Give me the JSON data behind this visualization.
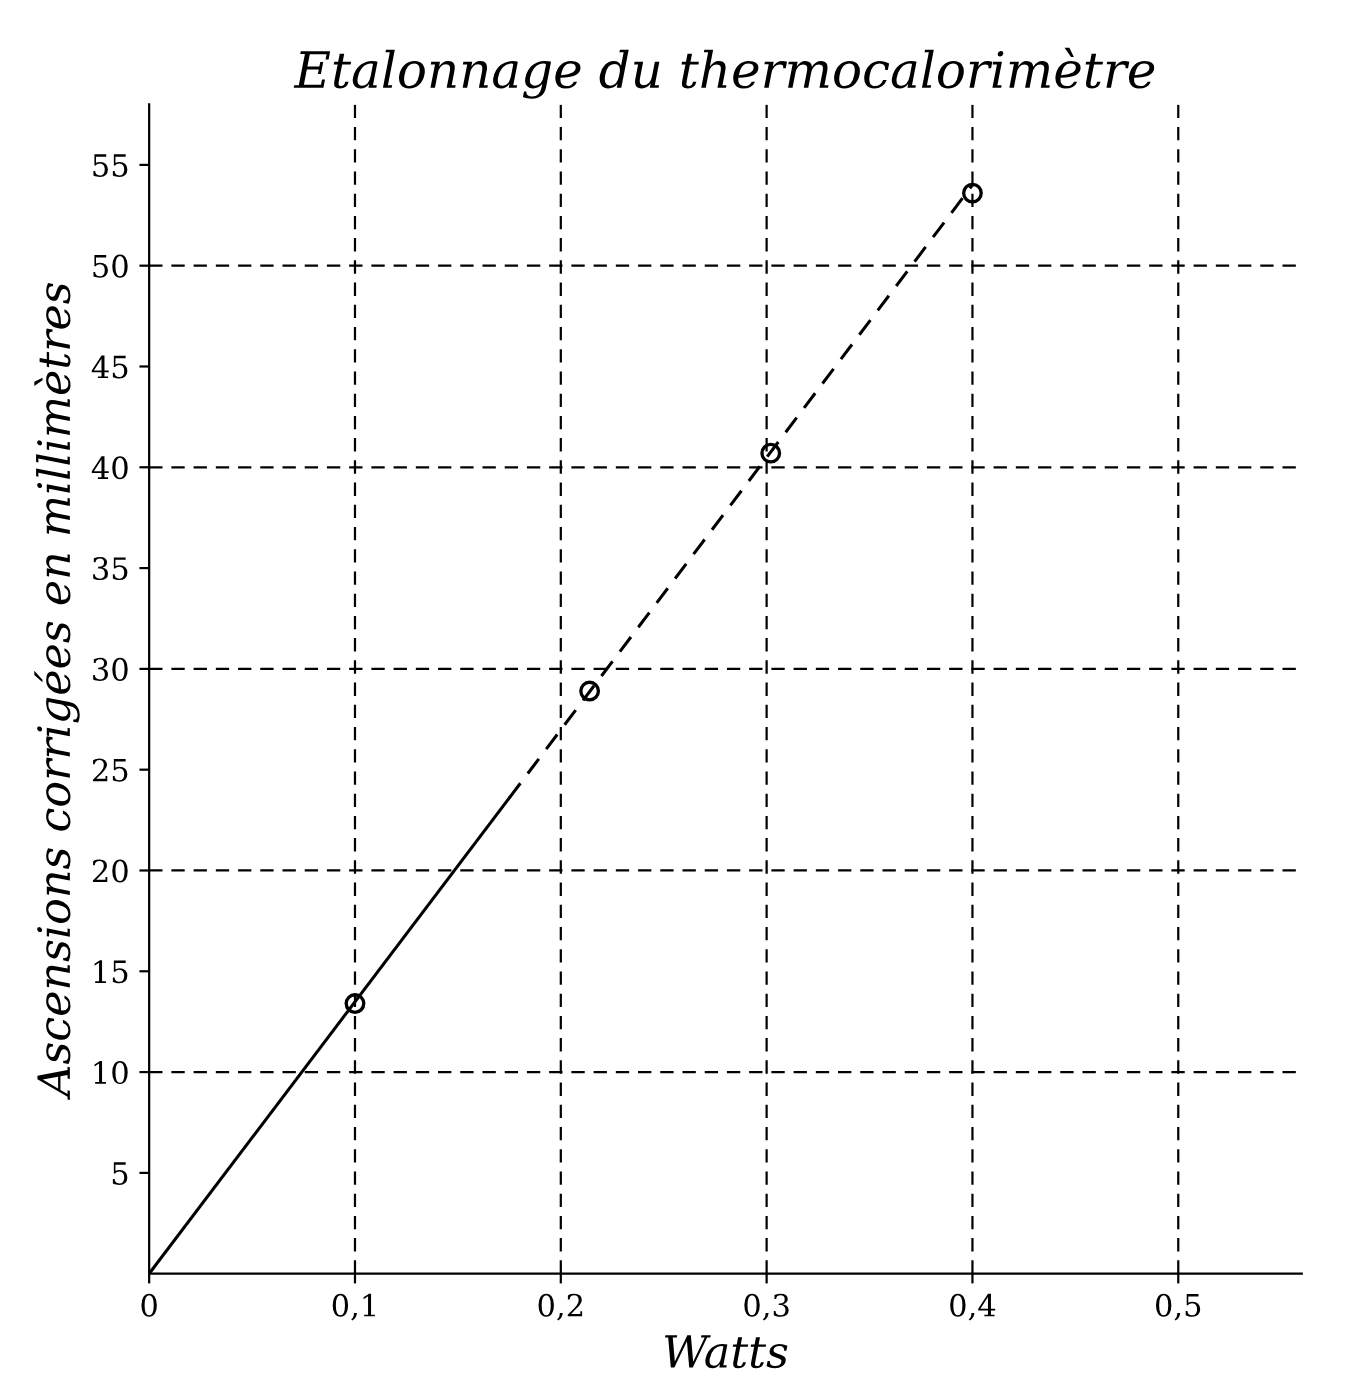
{
  "chart_data": {
    "type": "scatter",
    "title": "Etalonnage du thermocalorimètre",
    "xlabel": "Watts",
    "ylabel": "Ascensions corrigées en millimètres",
    "xlim": [
      0,
      0.56
    ],
    "ylim": [
      0,
      58
    ],
    "xticks": [
      0,
      {
        "value": 0.1,
        "label": "0,1"
      },
      {
        "value": 0.2,
        "label": "0,2"
      },
      {
        "value": 0.3,
        "label": "0,3"
      },
      {
        "value": 0.4,
        "label": "0,4"
      },
      {
        "value": 0.5,
        "label": "0,5"
      }
    ],
    "yticks": [
      5,
      10,
      15,
      20,
      25,
      30,
      35,
      40,
      45,
      50,
      55
    ],
    "marker": "circle",
    "series": [
      {
        "type": "scatter",
        "color": "#000000",
        "x": [
          0.1,
          0.214,
          0.302,
          0.4
        ],
        "values": [
          13.4,
          28.9,
          40.7,
          53.6
        ]
      },
      {
        "type": "line",
        "color": "#000000",
        "line_style": "solid",
        "marker": "none",
        "x": [
          0,
          0.175
        ],
        "values": [
          0,
          23.6
        ]
      },
      {
        "type": "line",
        "color": "#000000",
        "line_style": "dashed",
        "marker": "none",
        "x": [
          0.175,
          0.4
        ],
        "values": [
          23.6,
          54
        ]
      }
    ],
    "ref_lines": [
      {
        "axis": "y",
        "value": 10,
        "line_style": "dashed",
        "color": "#000000"
      },
      {
        "axis": "y",
        "value": 20,
        "line_style": "dashed",
        "color": "#000000"
      },
      {
        "axis": "y",
        "value": 30,
        "line_style": "dashed",
        "color": "#000000"
      },
      {
        "axis": "y",
        "value": 40,
        "line_style": "dashed",
        "color": "#000000"
      },
      {
        "axis": "y",
        "value": 50,
        "line_style": "dashed",
        "color": "#000000"
      },
      {
        "axis": "x",
        "value": 0.1,
        "line_style": "dashed",
        "color": "#000000"
      },
      {
        "axis": "x",
        "value": 0.2,
        "line_style": "dashed",
        "color": "#000000"
      },
      {
        "axis": "x",
        "value": 0.3,
        "line_style": "dashed",
        "color": "#000000"
      },
      {
        "axis": "x",
        "value": 0.4,
        "line_style": "dashed",
        "color": "#000000"
      },
      {
        "axis": "x",
        "value": 0.5,
        "line_style": "dashed",
        "color": "#000000"
      }
    ]
  }
}
